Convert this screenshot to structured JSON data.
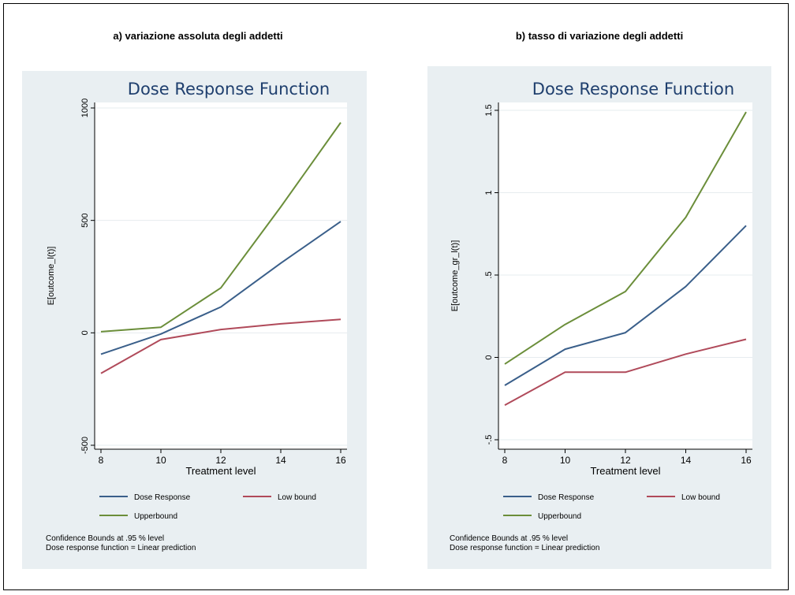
{
  "panels": [
    {
      "heading": "a) variazione assoluta degli addetti"
    },
    {
      "heading": "b) tasso di variazione degli addetti"
    }
  ],
  "chart_data": [
    {
      "type": "line",
      "title": "Dose Response Function",
      "xlabel": "Treatment level",
      "ylabel": "E[outcome_l(t)]",
      "xlim": [
        8,
        16
      ],
      "ylim": [
        -500,
        1000
      ],
      "xticks": [
        8,
        10,
        12,
        14,
        16
      ],
      "xtick_labels": [
        "8",
        "10",
        "12",
        "14",
        "16"
      ],
      "yticks": [
        -500,
        0,
        500,
        1000
      ],
      "ytick_labels": [
        "-500",
        "0",
        "500",
        "1000"
      ],
      "grid": true,
      "x": [
        8,
        10,
        12,
        14,
        16
      ],
      "series": [
        {
          "name": "Dose Response",
          "color": "#3a5f8a",
          "values": [
            -95,
            -5,
            115,
            310,
            495
          ]
        },
        {
          "name": "Low bound",
          "color": "#b04a5a",
          "values": [
            -180,
            -30,
            15,
            40,
            60
          ]
        },
        {
          "name": "Upperbound",
          "color": "#6b8e3a",
          "values": [
            5,
            25,
            200,
            560,
            935
          ]
        }
      ],
      "legend_position": "bottom",
      "notes": [
        "Confidence Bounds at .95 % level",
        "Dose response function = Linear prediction"
      ]
    },
    {
      "type": "line",
      "title": "Dose Response Function",
      "xlabel": "Treatment level",
      "ylabel": "E[outcome_gr_l(t)]",
      "xlim": [
        8,
        16
      ],
      "ylim": [
        -0.5,
        1.5
      ],
      "xticks": [
        8,
        10,
        12,
        14,
        16
      ],
      "xtick_labels": [
        "8",
        "10",
        "12",
        "14",
        "16"
      ],
      "yticks": [
        -0.5,
        0,
        0.5,
        1,
        1.5
      ],
      "ytick_labels": [
        "-.5",
        "0",
        ".5",
        "1",
        "1.5"
      ],
      "grid": true,
      "x": [
        8,
        10,
        12,
        14,
        16
      ],
      "series": [
        {
          "name": "Dose Response",
          "color": "#3a5f8a",
          "values": [
            -0.17,
            0.05,
            0.15,
            0.43,
            0.8
          ]
        },
        {
          "name": "Low bound",
          "color": "#b04a5a",
          "values": [
            -0.29,
            -0.09,
            -0.09,
            0.02,
            0.11
          ]
        },
        {
          "name": "Upperbound",
          "color": "#6b8e3a",
          "values": [
            -0.04,
            0.2,
            0.4,
            0.85,
            1.49
          ]
        }
      ],
      "legend_position": "bottom",
      "notes": [
        "Confidence Bounds at .95 % level",
        "Dose response function = Linear prediction"
      ]
    }
  ]
}
